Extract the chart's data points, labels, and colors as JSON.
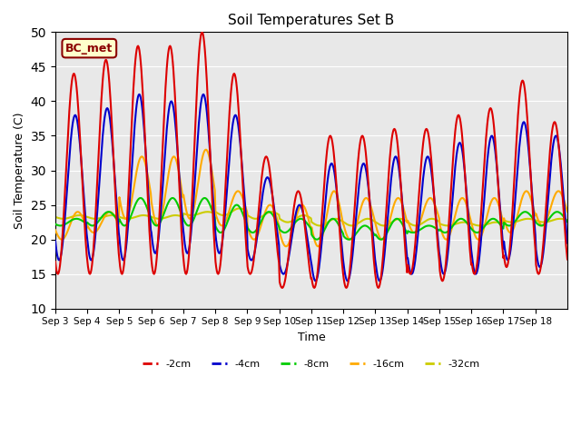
{
  "title": "Soil Temperatures Set B",
  "xlabel": "Time",
  "ylabel": "Soil Temperature (C)",
  "ylim": [
    10,
    50
  ],
  "annotation": "BC_met",
  "series_colors": {
    "-2cm": "#dd0000",
    "-4cm": "#0000cc",
    "-8cm": "#00cc00",
    "-16cm": "#ffaa00",
    "-32cm": "#cccc00"
  },
  "background_color": "#e8e8e8",
  "tick_labels": [
    "Sep 3",
    "Sep 4",
    "Sep 5",
    "Sep 6",
    "Sep 7",
    "Sep 8",
    "Sep 9",
    "Sep 10",
    "Sep 11",
    "Sep 12",
    "Sep 13",
    "Sep 14",
    "Sep 15",
    "Sep 16",
    "Sep 17",
    "Sep 18"
  ],
  "day_peaks_2cm": [
    44,
    46,
    48,
    48,
    50,
    44,
    32,
    27,
    35,
    35,
    36,
    36,
    38,
    39,
    43,
    37
  ],
  "day_troughs_2cm": [
    15,
    15,
    15,
    15,
    15,
    15,
    15,
    13,
    13,
    13,
    13,
    15,
    14,
    15,
    16,
    15
  ],
  "day_peaks_4cm": [
    38,
    39,
    41,
    40,
    41,
    38,
    29,
    25,
    31,
    31,
    32,
    32,
    34,
    35,
    37,
    35
  ],
  "day_troughs_4cm": [
    17,
    17,
    17,
    18,
    18,
    18,
    17,
    15,
    14,
    14,
    14,
    15,
    15,
    15,
    17,
    16
  ],
  "day_peaks_8cm": [
    23,
    24,
    26,
    26,
    26,
    25,
    24,
    23,
    23,
    22,
    23,
    22,
    23,
    23,
    24,
    24
  ],
  "day_troughs_8cm": [
    22,
    22,
    22,
    22,
    22,
    21,
    21,
    21,
    20,
    20,
    20,
    21,
    21,
    21,
    22,
    22
  ],
  "day_peaks_16cm": [
    24,
    24,
    32,
    32,
    33,
    27,
    25,
    25,
    27,
    26,
    26,
    26,
    26,
    26,
    27,
    27
  ],
  "day_troughs_16cm": [
    20,
    21,
    23,
    22,
    23,
    22,
    20,
    19,
    19,
    20,
    20,
    21,
    20,
    20,
    21,
    22
  ],
  "day_peaks_32cm": [
    23.5,
    23.5,
    23.5,
    23.5,
    24.0,
    24.5,
    24.0,
    23.5,
    23.0,
    23.0,
    23.0,
    23.0,
    22.5,
    22.5,
    23.0,
    23.0
  ],
  "day_troughs_32cm": [
    23.0,
    23.0,
    23.0,
    23.0,
    23.5,
    23.5,
    23.0,
    22.5,
    22.0,
    22.0,
    22.0,
    22.0,
    22.0,
    22.0,
    22.5,
    22.5
  ]
}
